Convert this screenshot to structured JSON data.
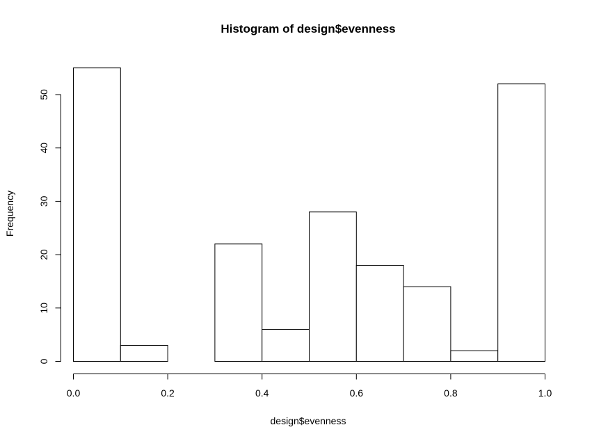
{
  "chart_data": {
    "type": "bar",
    "title": "Histogram of design$evenness",
    "xlabel": "design$evenness",
    "ylabel": "Frequency",
    "bins": [
      {
        "start": 0.0,
        "end": 0.1,
        "count": 55
      },
      {
        "start": 0.1,
        "end": 0.2,
        "count": 3
      },
      {
        "start": 0.2,
        "end": 0.3,
        "count": 0
      },
      {
        "start": 0.3,
        "end": 0.4,
        "count": 22
      },
      {
        "start": 0.4,
        "end": 0.5,
        "count": 6
      },
      {
        "start": 0.5,
        "end": 0.6,
        "count": 28
      },
      {
        "start": 0.6,
        "end": 0.7,
        "count": 18
      },
      {
        "start": 0.7,
        "end": 0.8,
        "count": 14
      },
      {
        "start": 0.8,
        "end": 0.9,
        "count": 2
      },
      {
        "start": 0.9,
        "end": 1.0,
        "count": 52
      }
    ],
    "xlim": [
      0,
      1
    ],
    "ylim": [
      0,
      55
    ],
    "x_ticks": [
      "0.0",
      "0.2",
      "0.4",
      "0.6",
      "0.8",
      "1.0"
    ],
    "y_ticks": [
      "0",
      "10",
      "20",
      "30",
      "40",
      "50"
    ],
    "grid": false,
    "bar_fill": "#ffffff",
    "bar_stroke": "#000000"
  }
}
